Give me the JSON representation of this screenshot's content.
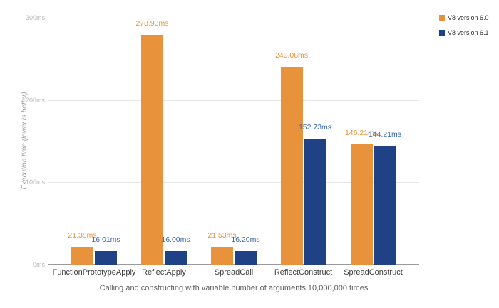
{
  "chart_data": {
    "type": "bar",
    "title": "",
    "categories": [
      "FunctionPrototypeApply",
      "ReflectApply",
      "SpreadCall",
      "ReflectConstruct",
      "SpreadConstruct"
    ],
    "series": [
      {
        "name": "V8 version 6.0",
        "color": "#e8923c",
        "label_color": "#e8923c",
        "values": [
          21.38,
          278.93,
          21.53,
          240.08,
          146.21
        ],
        "value_labels": [
          "21.38ms",
          "278.93ms",
          "21.53ms",
          "240.08ms",
          "146.21ms"
        ]
      },
      {
        "name": "V8 version 6.1",
        "color": "#1f4287",
        "label_color": "#3a67ae",
        "values": [
          16.01,
          16.0,
          16.2,
          152.73,
          144.21
        ],
        "value_labels": [
          "16.01ms",
          "16.00ms",
          "16.20ms",
          "152.73ms",
          "144.21ms"
        ]
      }
    ],
    "y_axis": {
      "title": "Execution time (lower is better)",
      "max": 300,
      "ticks": [
        {
          "label": "0ms",
          "value": 0
        },
        {
          "label": "100ms",
          "value": 100
        },
        {
          "label": "200ms",
          "value": 200
        },
        {
          "label": "300ms",
          "value": 300
        }
      ]
    },
    "x_caption": "Calling and constructing with variable number of arguments 10,000,000 times",
    "legend": {
      "position": "top-right",
      "entries": [
        "V8 version 6.0",
        "V8 version 6.1"
      ]
    },
    "grid": true,
    "background": "#ffffff",
    "colors": {
      "gridline": "#e6e6e6",
      "axis_line": "#9b9b9b",
      "tick_label": "#b7b7b7",
      "category_label": "#3c3c3c",
      "caption": "#5f5f5f",
      "legend_text": "#333333",
      "y_title": "#9e9e9e"
    }
  }
}
